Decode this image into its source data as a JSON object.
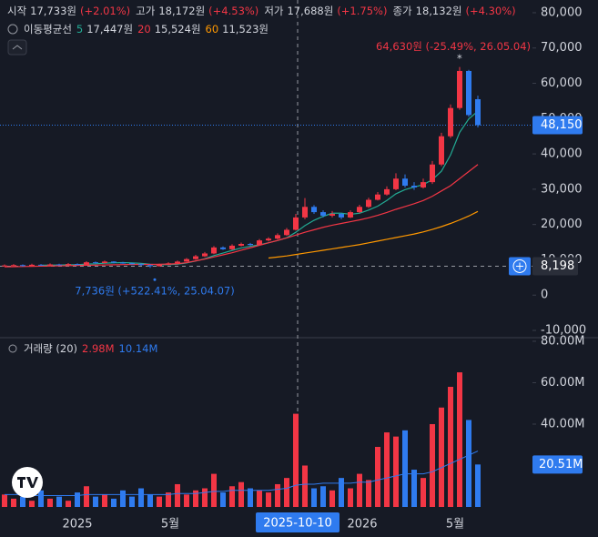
{
  "chart_data": {
    "type": "candlestick",
    "ohlc_legend": [
      {
        "label": "시작",
        "value": "17,733원",
        "change": "(+2.01%)"
      },
      {
        "label": "고가",
        "value": "18,172원",
        "change": "(+4.53%)"
      },
      {
        "label": "저가",
        "value": "17,688원",
        "change": "(+1.75%)"
      },
      {
        "label": "종가",
        "value": "18,132원",
        "change": "(+4.30%)"
      }
    ],
    "ma_legend": {
      "title": "이동평균선",
      "items": [
        {
          "period": "5",
          "value": "17,447원",
          "color": "#22ab94"
        },
        {
          "period": "20",
          "value": "15,524원",
          "color": "#f23645"
        },
        {
          "period": "60",
          "value": "11,523원",
          "color": "#ff9800"
        }
      ]
    },
    "volume_legend": {
      "title": "거래량 (20)",
      "values": [
        "2.98M",
        "10.14M"
      ]
    },
    "up_color": "#f23645",
    "down_color": "#2f7bef",
    "open": [
      8300,
      8400,
      8500,
      8300,
      8600,
      8450,
      8700,
      8550,
      8800,
      8600,
      9300,
      9100,
      9500,
      9200,
      9000,
      8800,
      8500,
      8200,
      8600,
      9000,
      9500,
      10200,
      11000,
      11800,
      13500,
      13000,
      14000,
      14500,
      14200,
      15500,
      16000,
      17000,
      18500,
      22000,
      25000,
      23500,
      22500,
      23000,
      22000,
      23500,
      25000,
      27000,
      28500,
      30000,
      33000,
      31000,
      30500,
      32000,
      37000,
      45000,
      53000,
      63500,
      55500
    ],
    "high": [
      8700,
      8800,
      8700,
      8900,
      8800,
      9000,
      8900,
      9100,
      9000,
      9600,
      9500,
      9800,
      9600,
      9400,
      9200,
      9000,
      8700,
      8900,
      9300,
      9800,
      10500,
      11400,
      12200,
      13900,
      13800,
      14400,
      14900,
      14800,
      15900,
      16400,
      17500,
      19000,
      23000,
      27500,
      25500,
      24000,
      23800,
      23300,
      24000,
      25600,
      27600,
      29200,
      30800,
      34500,
      34200,
      32000,
      33000,
      38000,
      46000,
      54000,
      64630,
      63800,
      56500
    ],
    "low": [
      8100,
      8200,
      8100,
      8200,
      8300,
      8300,
      8400,
      8400,
      8400,
      8500,
      9000,
      9000,
      9000,
      8900,
      8700,
      8300,
      7736,
      8100,
      8500,
      8900,
      9400,
      10000,
      10800,
      11600,
      12800,
      12800,
      13800,
      14000,
      14000,
      15200,
      15800,
      16800,
      18300,
      21500,
      23000,
      22000,
      22000,
      21500,
      21800,
      23200,
      24700,
      26800,
      28200,
      29700,
      30500,
      29800,
      30200,
      31500,
      36500,
      44500,
      52500,
      50500,
      47500
    ],
    "close": [
      8400,
      8500,
      8300,
      8600,
      8450,
      8700,
      8550,
      8800,
      8600,
      9300,
      9100,
      9500,
      9200,
      9000,
      8800,
      8500,
      8200,
      8600,
      9000,
      9500,
      10200,
      11000,
      11800,
      13500,
      13000,
      14000,
      14500,
      14200,
      15500,
      16000,
      17000,
      18500,
      22000,
      25000,
      23500,
      22500,
      23000,
      22000,
      23500,
      25000,
      27000,
      28500,
      30000,
      33000,
      31000,
      30500,
      32000,
      37000,
      45000,
      53000,
      63500,
      51000,
      48150
    ],
    "moving_averages": [
      {
        "name": "5",
        "color": "#22ab94",
        "values": [
          null,
          null,
          null,
          null,
          8450,
          8510,
          8520,
          8620,
          8620,
          8790,
          8870,
          9060,
          9140,
          9220,
          9120,
          9000,
          8740,
          8620,
          8620,
          8760,
          9100,
          9660,
          10300,
          11200,
          11900,
          12660,
          13360,
          13840,
          14240,
          14840,
          15440,
          16240,
          17800,
          19700,
          21200,
          22300,
          23200,
          23200,
          22900,
          23200,
          24100,
          25200,
          26800,
          28700,
          29900,
          30600,
          31300,
          32700,
          35100,
          39700,
          46100,
          49900,
          52100
        ]
      },
      {
        "name": "20",
        "color": "#f23645",
        "values": [
          8000,
          8050,
          8100,
          8150,
          8200,
          8250,
          8300,
          8350,
          8400,
          8450,
          8500,
          8550,
          8600,
          8650,
          8700,
          8700,
          8700,
          8750,
          8800,
          8900,
          9200,
          9700,
          10200,
          10800,
          11400,
          12000,
          12700,
          13400,
          14100,
          14800,
          15500,
          16200,
          17000,
          17800,
          18500,
          19200,
          19800,
          20300,
          20800,
          21300,
          21900,
          22600,
          23400,
          24300,
          25100,
          25900,
          26800,
          28000,
          29500,
          31000,
          33000,
          35000,
          37000
        ]
      },
      {
        "name": "60",
        "color": "#ff9800",
        "values": [
          null,
          null,
          null,
          null,
          null,
          null,
          null,
          null,
          null,
          null,
          null,
          null,
          null,
          null,
          null,
          null,
          null,
          null,
          null,
          null,
          null,
          null,
          null,
          null,
          null,
          null,
          null,
          null,
          null,
          10500,
          10800,
          11100,
          11500,
          11900,
          12300,
          12700,
          13100,
          13500,
          13900,
          14300,
          14800,
          15300,
          15800,
          16300,
          16800,
          17300,
          17900,
          18600,
          19400,
          20300,
          21300,
          22400,
          23700
        ]
      }
    ],
    "ylim": [
      -11800,
      83600
    ],
    "yticks": [
      {
        "value": -10000,
        "label": "-10,000"
      },
      0,
      {
        "value": 10000,
        "label": "10,000"
      },
      {
        "value": 20000,
        "label": "20,000"
      },
      {
        "value": 30000,
        "label": "30,000"
      },
      {
        "value": 40000,
        "label": "40,000"
      },
      {
        "value": 50000,
        "label": "50,000"
      },
      {
        "value": 60000,
        "label": "60,000"
      },
      {
        "value": 70000,
        "label": "70,000"
      },
      {
        "value": 80000,
        "label": "80,000"
      }
    ],
    "last_price": {
      "value": 48150,
      "label": "48,150"
    },
    "crosshair_price": {
      "value": 8198,
      "label": "8,198"
    },
    "crosshair_date": "2025-10-10",
    "high_annotation": "64,630원 (-25.49%, 26.05.04)",
    "low_annotation": "7,736원 (+522.41%, 25.04.07)",
    "volume": [
      6,
      4,
      5,
      3,
      8,
      4,
      5,
      3,
      7,
      10,
      5,
      6,
      4,
      8,
      5,
      9,
      6,
      5,
      7,
      11,
      6,
      8,
      9,
      16,
      7,
      10,
      12,
      9,
      8,
      7,
      11,
      14,
      45,
      20,
      9,
      10,
      8,
      14,
      9,
      16,
      13,
      29,
      36,
      34,
      37,
      18,
      14,
      40,
      48,
      58,
      65,
      42,
      20.51
    ],
    "volume_ma": {
      "color": "#2f7bef",
      "values": [
        6,
        6,
        6,
        5.5,
        5.5,
        5.5,
        5.5,
        5.5,
        5.5,
        6,
        6,
        6,
        6,
        6,
        6,
        6,
        6,
        6,
        6,
        6.5,
        6.5,
        6.5,
        7,
        7.5,
        7.5,
        8,
        8,
        8,
        8,
        8,
        8.5,
        9,
        10.5,
        11,
        11,
        11.5,
        11.5,
        11.5,
        11.5,
        12,
        12,
        13,
        14,
        15,
        16,
        16,
        16,
        17,
        19,
        21,
        23,
        25,
        27
      ]
    },
    "volume_ylim": [
      0,
      81.3
    ],
    "volume_ticks": [
      {
        "value": 40,
        "label": "40.00M"
      },
      {
        "value": 60,
        "label": "60.00M"
      },
      {
        "value": 80,
        "label": "80.00M"
      }
    ],
    "last_volume": {
      "value": 20.51,
      "label": "20.51M"
    },
    "x_labels": [
      "2025",
      "5월",
      "2026",
      "5월"
    ]
  }
}
